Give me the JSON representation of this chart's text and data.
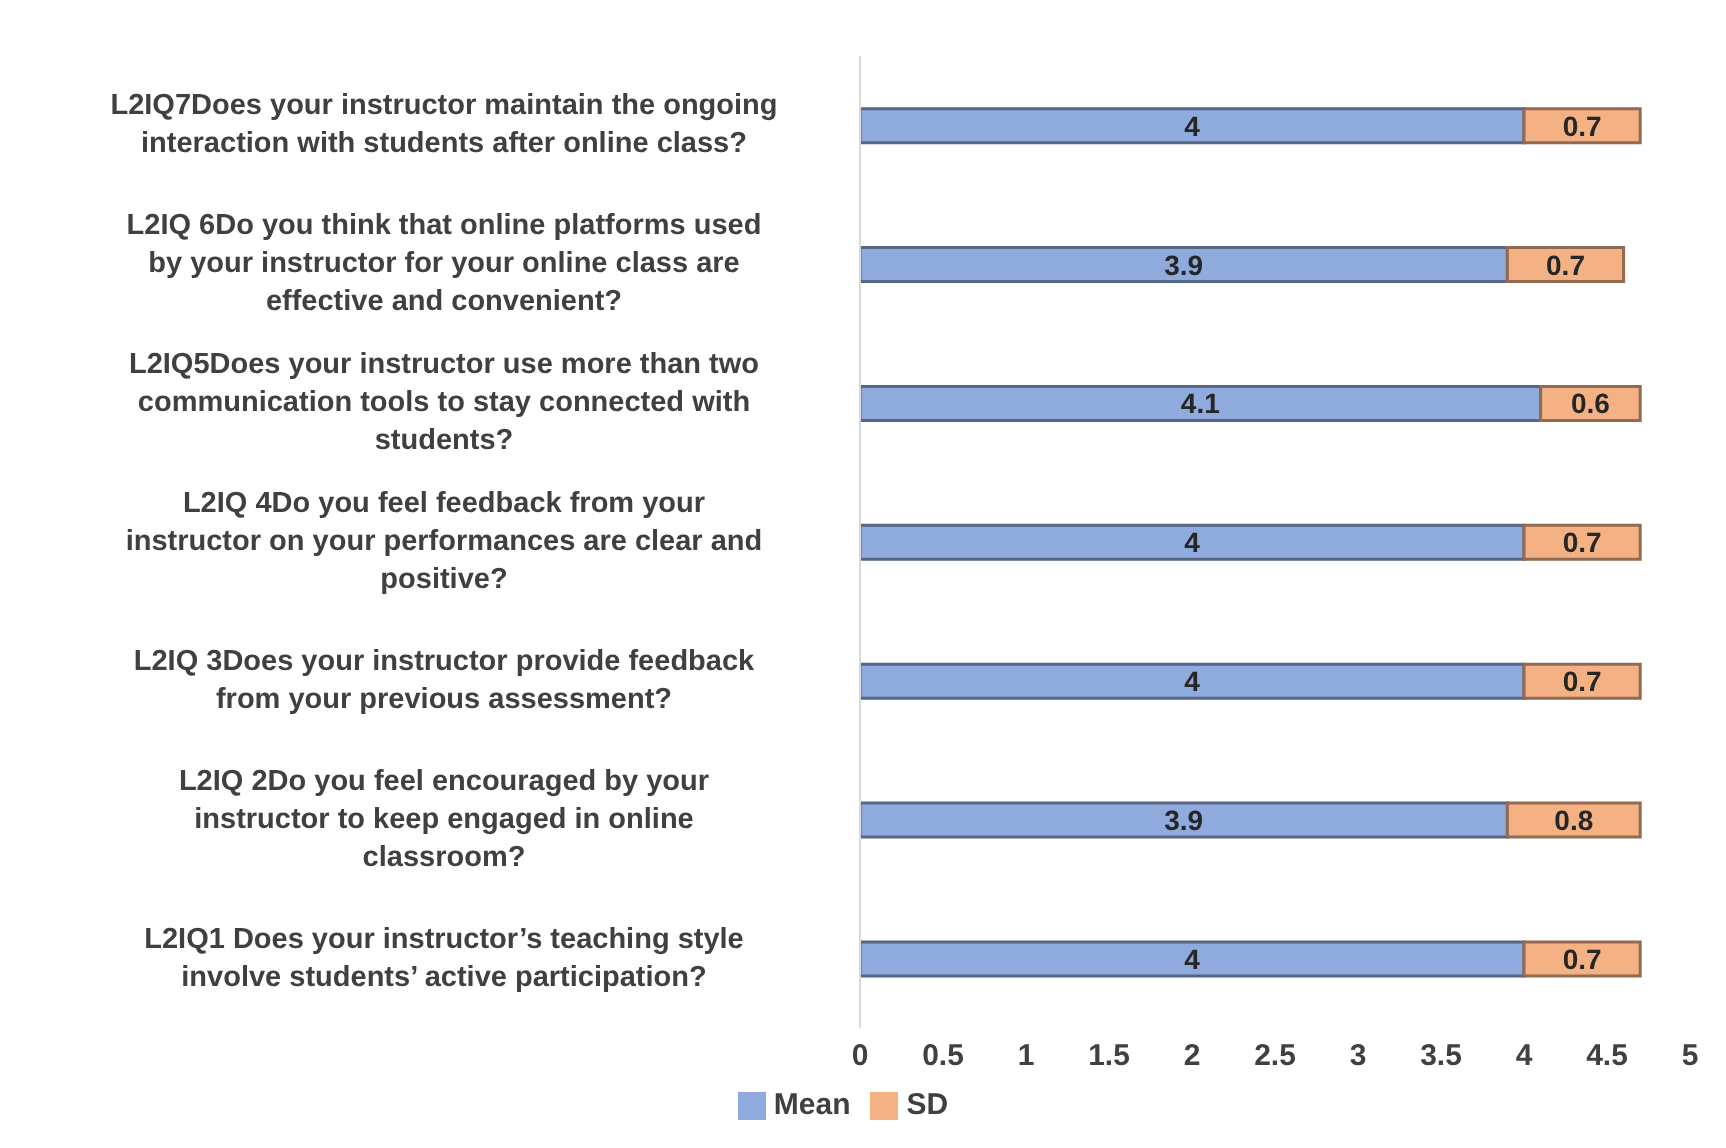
{
  "chart_data": {
    "type": "bar",
    "orientation": "horizontal",
    "stacked": true,
    "data_labels": true,
    "legend": "bottom",
    "grid": false,
    "categories": [
      "L2IQ7Does your instructor maintain the ongoing interaction with students after online class?",
      "L2IQ 6Do you think that online platforms used by your instructor for your online class are effective and convenient?",
      "L2IQ5Does your instructor use more than two communication tools to stay connected with students?",
      "L2IQ 4Do you feel feedback from your instructor on your performances are clear and positive?",
      "L2IQ 3Does your instructor provide feedback from your previous assessment?",
      "L2IQ 2Do you feel encouraged by your instructor to keep engaged in online classroom?",
      "L2IQ1 Does your instructor’s teaching style involve students’ active participation?"
    ],
    "series": [
      {
        "name": "Mean",
        "color": "#8faadc",
        "values": [
          4,
          3.9,
          4.1,
          4,
          4,
          3.9,
          4
        ]
      },
      {
        "name": "SD",
        "color": "#f4b183",
        "values": [
          0.7,
          0.7,
          0.6,
          0.7,
          0.7,
          0.8,
          0.7
        ]
      }
    ],
    "xlim": [
      0,
      5
    ],
    "xticks": [
      0,
      0.5,
      1,
      1.5,
      2,
      2.5,
      3,
      3.5,
      4,
      4.5,
      5
    ]
  }
}
